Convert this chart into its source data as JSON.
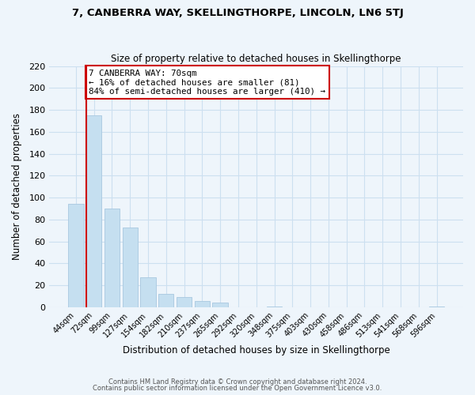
{
  "title": "7, CANBERRA WAY, SKELLINGTHORPE, LINCOLN, LN6 5TJ",
  "subtitle": "Size of property relative to detached houses in Skellingthorpe",
  "xlabel": "Distribution of detached houses by size in Skellingthorpe",
  "ylabel": "Number of detached properties",
  "bar_color": "#c5dff0",
  "bar_edge_color": "#a8c8e0",
  "categories": [
    "44sqm",
    "72sqm",
    "99sqm",
    "127sqm",
    "154sqm",
    "182sqm",
    "210sqm",
    "237sqm",
    "265sqm",
    "292sqm",
    "320sqm",
    "348sqm",
    "375sqm",
    "403sqm",
    "430sqm",
    "458sqm",
    "486sqm",
    "513sqm",
    "541sqm",
    "568sqm",
    "596sqm"
  ],
  "values": [
    94,
    175,
    90,
    73,
    27,
    12,
    9,
    6,
    4,
    0,
    0,
    1,
    0,
    0,
    0,
    0,
    0,
    0,
    0,
    0,
    1
  ],
  "ylim": [
    0,
    220
  ],
  "yticks": [
    0,
    20,
    40,
    60,
    80,
    100,
    120,
    140,
    160,
    180,
    200,
    220
  ],
  "vline_color": "#cc0000",
  "annotation_title": "7 CANBERRA WAY: 70sqm",
  "annotation_line1": "← 16% of detached houses are smaller (81)",
  "annotation_line2": "84% of semi-detached houses are larger (410) →",
  "annotation_box_color": "#ffffff",
  "annotation_box_edge": "#cc0000",
  "footer_line1": "Contains HM Land Registry data © Crown copyright and database right 2024.",
  "footer_line2": "Contains public sector information licensed under the Open Government Licence v3.0.",
  "grid_color": "#cce0f0",
  "background_color": "#eef5fb"
}
